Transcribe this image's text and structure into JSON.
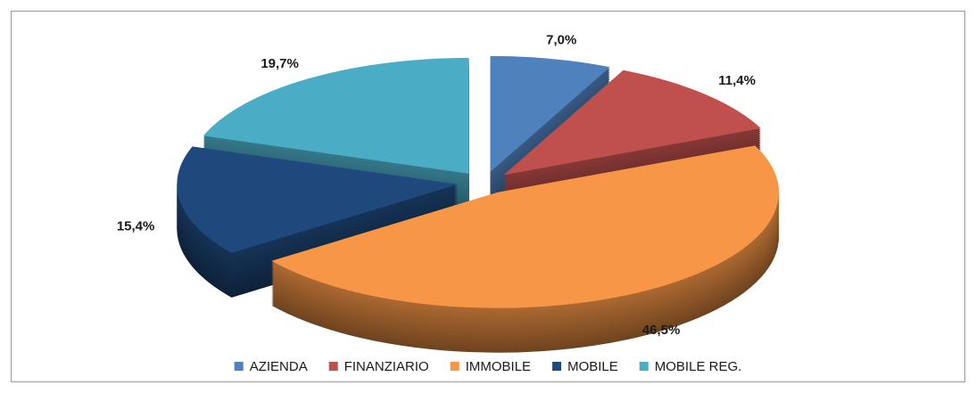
{
  "chart_data": {
    "type": "pie",
    "three_d": true,
    "exploded": true,
    "categories": [
      "AZIENDA",
      "FINANZIARIO",
      "IMMOBILE",
      "MOBILE",
      "MOBILE REG."
    ],
    "values": [
      7.0,
      11.4,
      46.5,
      15.4,
      19.7
    ],
    "value_labels": [
      "7,0%",
      "11,4%",
      "46,5%",
      "15,4%",
      "19,7%"
    ],
    "colors": [
      "#4f81bd",
      "#c0504d",
      "#f79646",
      "#1f497d",
      "#4bacc6"
    ],
    "legend": "bottom"
  }
}
